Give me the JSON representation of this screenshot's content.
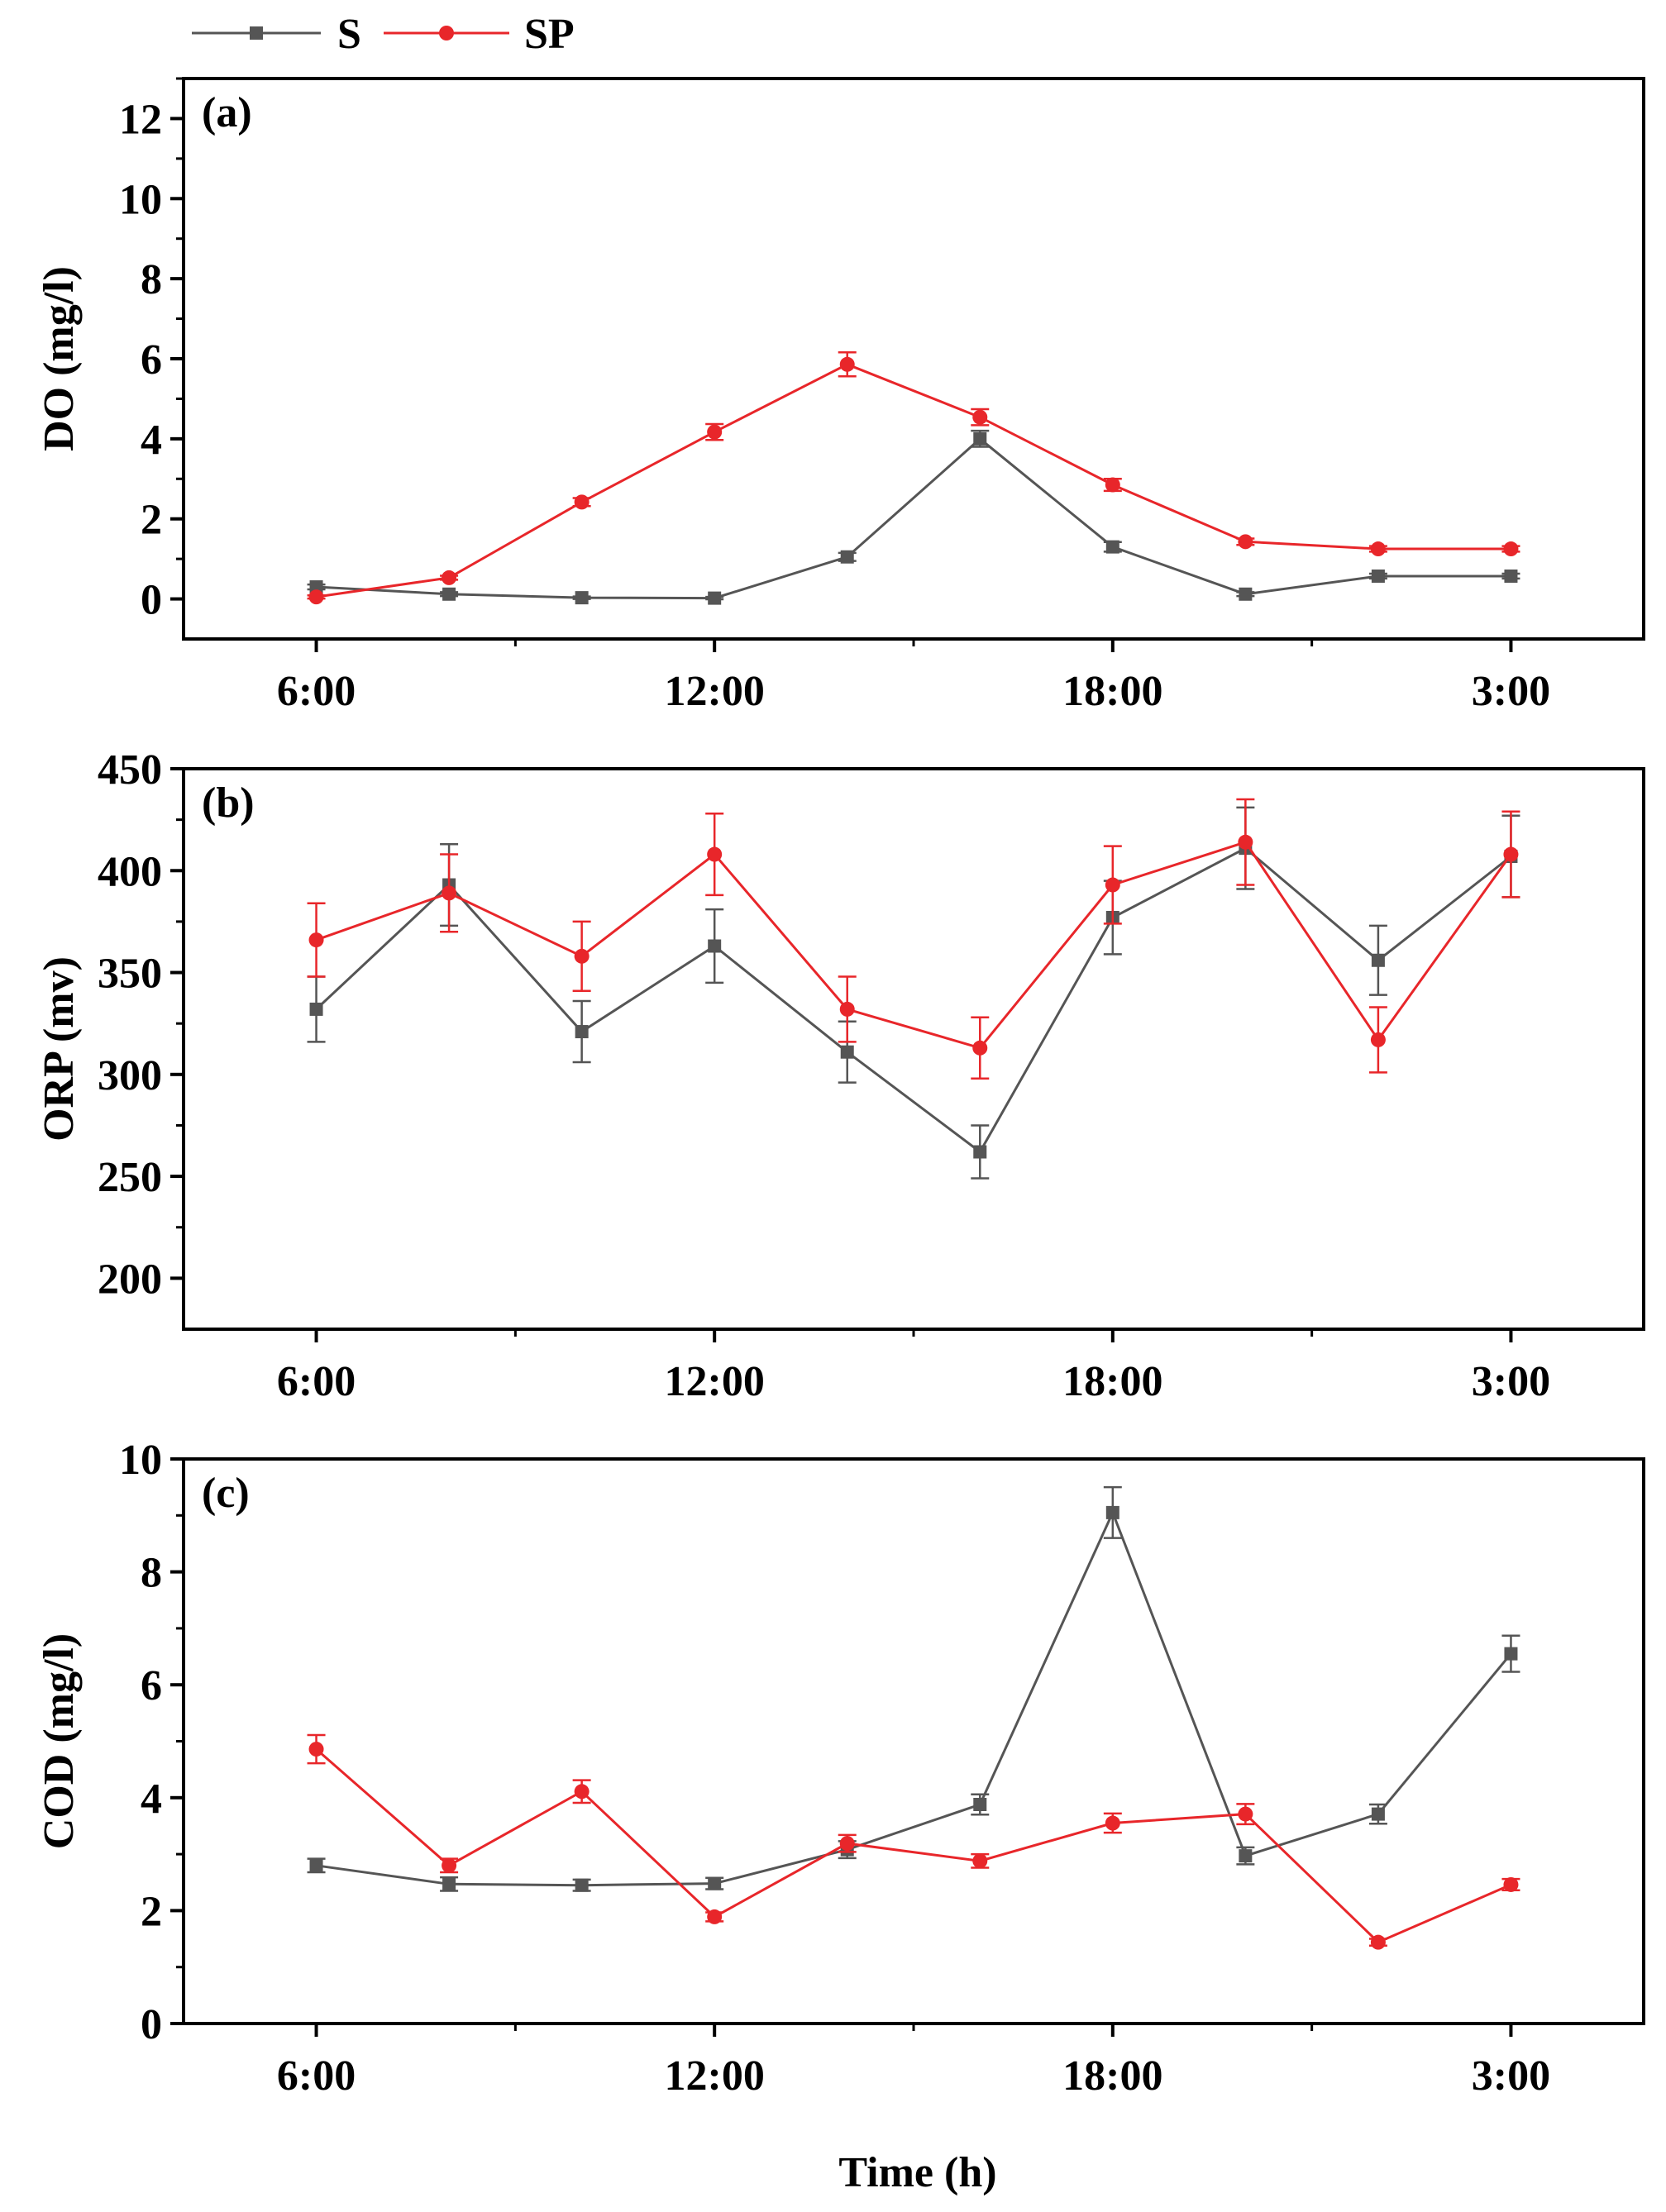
{
  "legend": {
    "position": "top-left",
    "entries": [
      {
        "series": "S",
        "label": "S",
        "color": "#555555",
        "marker": "square"
      },
      {
        "series": "SP",
        "label": "SP",
        "color": "#e8262a",
        "marker": "circle"
      }
    ]
  },
  "xlabel": "Time (h)",
  "chart_data": [
    {
      "type": "line",
      "panel_label": "(a)",
      "ylabel": "DO (mg/l)",
      "xlabel": "",
      "x": [
        6,
        8,
        10,
        12,
        14,
        16,
        18,
        20,
        22,
        24
      ],
      "x_tick_values": [
        6,
        12,
        18,
        24
      ],
      "x_tick_labels": [
        "6:00",
        "12:00",
        "18:00",
        "3:00"
      ],
      "x_minor_tick_values": [
        9,
        15,
        21
      ],
      "xlim": [
        4,
        26
      ],
      "ylim": [
        -1,
        13
      ],
      "y_ticks": [
        0,
        2,
        4,
        6,
        8,
        10,
        12
      ],
      "y_tick_labels": [
        "0",
        "2",
        "4",
        "6",
        "8",
        "10",
        "12"
      ],
      "grid": false,
      "series": [
        {
          "name": "S",
          "color": "#555555",
          "marker": "square",
          "values": [
            0.3,
            0.12,
            0.03,
            0.02,
            1.05,
            4.0,
            1.3,
            0.12,
            0.57,
            0.57
          ],
          "errors": [
            0.06,
            0.05,
            0.03,
            0.03,
            0.1,
            0.2,
            0.12,
            0.05,
            0.06,
            0.06
          ]
        },
        {
          "name": "SP",
          "color": "#e8262a",
          "marker": "circle",
          "values": [
            0.05,
            0.53,
            2.42,
            4.17,
            5.86,
            4.54,
            2.85,
            1.43,
            1.25,
            1.25
          ],
          "errors": [
            0.04,
            0.05,
            0.1,
            0.2,
            0.3,
            0.2,
            0.15,
            0.08,
            0.07,
            0.07
          ]
        }
      ]
    },
    {
      "type": "line",
      "panel_label": "(b)",
      "ylabel": "ORP (mv)",
      "xlabel": "",
      "x": [
        6,
        8,
        10,
        12,
        14,
        16,
        18,
        20,
        22,
        24
      ],
      "x_tick_values": [
        6,
        12,
        18,
        24
      ],
      "x_tick_labels": [
        "6:00",
        "12:00",
        "18:00",
        "3:00"
      ],
      "x_minor_tick_values": [
        9,
        15,
        21
      ],
      "xlim": [
        4,
        26
      ],
      "ylim": [
        175,
        450
      ],
      "y_ticks": [
        200,
        250,
        300,
        350,
        400,
        450
      ],
      "y_tick_labels": [
        "200",
        "250",
        "300",
        "350",
        "400",
        "450"
      ],
      "grid": false,
      "series": [
        {
          "name": "S",
          "color": "#555555",
          "marker": "square",
          "values": [
            332,
            393,
            321,
            363,
            311,
            262,
            377,
            411,
            356,
            407
          ],
          "errors": [
            16,
            20,
            15,
            18,
            15,
            13,
            18,
            20,
            17,
            20
          ]
        },
        {
          "name": "SP",
          "color": "#e8262a",
          "marker": "circle",
          "values": [
            366,
            389,
            358,
            408,
            332,
            313,
            393,
            414,
            317,
            408
          ],
          "errors": [
            18,
            19,
            17,
            20,
            16,
            15,
            19,
            21,
            16,
            21
          ]
        }
      ]
    },
    {
      "type": "line",
      "panel_label": "(c)",
      "ylabel": "COD (mg/l)",
      "xlabel": "Time (h)",
      "x": [
        6,
        8,
        10,
        12,
        14,
        16,
        18,
        20,
        22,
        24
      ],
      "x_tick_values": [
        6,
        12,
        18,
        24
      ],
      "x_tick_labels": [
        "6:00",
        "12:00",
        "18:00",
        "3:00"
      ],
      "x_minor_tick_values": [
        9,
        15,
        21
      ],
      "xlim": [
        4,
        26
      ],
      "ylim": [
        0,
        10
      ],
      "y_ticks": [
        0,
        2,
        4,
        6,
        8,
        10
      ],
      "y_tick_labels": [
        "0",
        "2",
        "4",
        "6",
        "8",
        "10"
      ],
      "grid": false,
      "series": [
        {
          "name": "S",
          "color": "#555555",
          "marker": "square",
          "values": [
            2.8,
            2.47,
            2.45,
            2.48,
            3.08,
            3.88,
            9.05,
            2.97,
            3.71,
            6.55
          ],
          "errors": [
            0.12,
            0.12,
            0.1,
            0.1,
            0.15,
            0.18,
            0.45,
            0.15,
            0.17,
            0.32
          ]
        },
        {
          "name": "SP",
          "color": "#e8262a",
          "marker": "circle",
          "values": [
            4.86,
            2.8,
            4.11,
            1.89,
            3.19,
            2.88,
            3.55,
            3.71,
            1.44,
            2.46
          ],
          "errors": [
            0.25,
            0.12,
            0.2,
            0.08,
            0.15,
            0.12,
            0.17,
            0.18,
            0.06,
            0.1
          ]
        }
      ]
    }
  ]
}
